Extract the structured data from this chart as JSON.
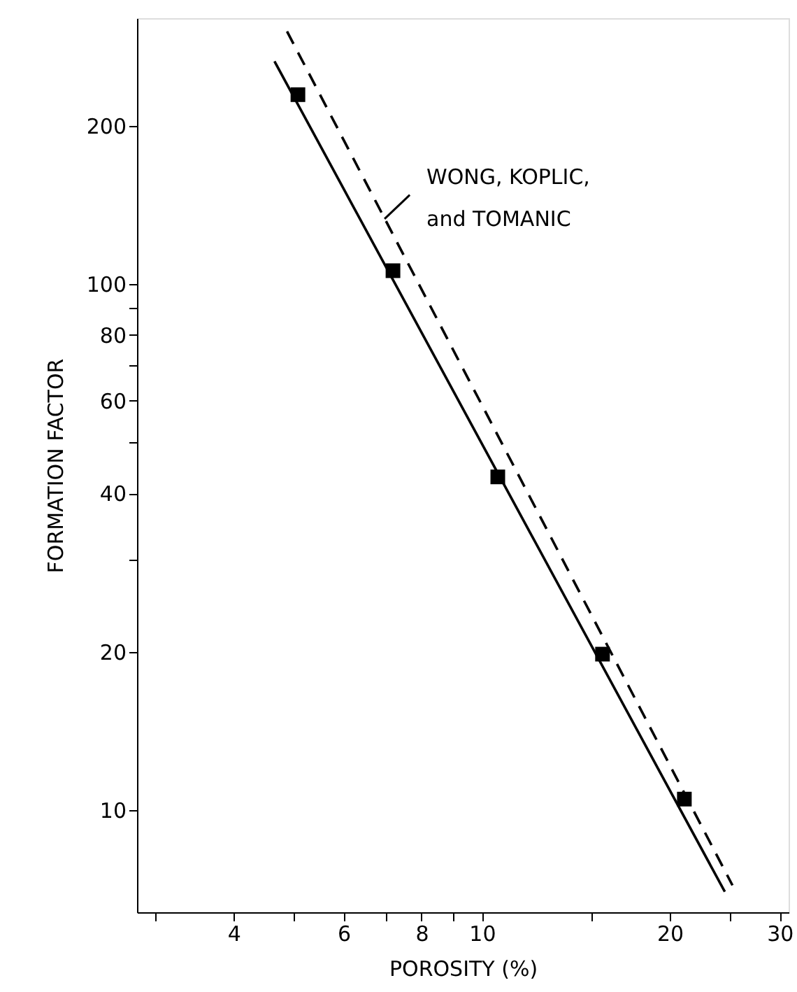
{
  "chart_data": {
    "type": "scatter",
    "xlabel": "POROSITY (%)",
    "ylabel": "FORMATION FACTOR",
    "log": "xy",
    "grid": false,
    "xlim": [
      2.8,
      31
    ],
    "ylim": [
      6.4,
      320
    ],
    "xticks": [
      {
        "value": 3,
        "label": null
      },
      4,
      {
        "value": 5,
        "label": null
      },
      6,
      {
        "value": 7,
        "label": null
      },
      8,
      {
        "value": 9,
        "label": null
      },
      10,
      {
        "value": 15,
        "label": null
      },
      20,
      {
        "value": 25,
        "label": null
      },
      30
    ],
    "yticks": [
      10,
      20,
      {
        "value": 30,
        "label": null
      },
      40,
      {
        "value": 50,
        "label": null
      },
      60,
      {
        "value": 70,
        "label": null
      },
      80,
      {
        "value": 90,
        "label": null
      },
      100,
      200
    ],
    "series": [
      {
        "marker": "square",
        "color": "#000000",
        "x": [
          5.07,
          7.2,
          10.6,
          15.6,
          21.1
        ],
        "values": [
          229,
          106,
          43,
          19.8,
          10.5
        ]
      },
      {
        "type": "line",
        "line_style": "solid",
        "marker": "none",
        "color": "#000000",
        "x": [
          4.65,
          24.5
        ],
        "values": [
          265,
          7.0
        ]
      },
      {
        "type": "line",
        "line_style": "dashed",
        "marker": "none",
        "color": "#000000",
        "x": [
          4.87,
          25.2
        ],
        "values": [
          302,
          7.2
        ]
      }
    ],
    "annotations": [
      {
        "text": "WONG, KOPLIC,\n      and TOMANIC",
        "x": 6.98,
        "y": 133
      }
    ]
  }
}
